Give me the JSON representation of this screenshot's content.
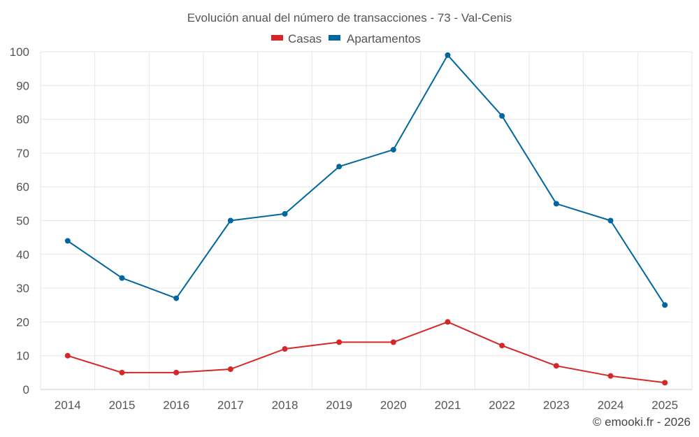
{
  "chart_data": {
    "type": "line",
    "title": "Evolución anual del número de transacciones - 73 - Val-Cenis",
    "categories": [
      "2014",
      "2015",
      "2016",
      "2017",
      "2018",
      "2019",
      "2020",
      "2021",
      "2022",
      "2023",
      "2024",
      "2025"
    ],
    "series": [
      {
        "name": "Casas",
        "color": "#d62728",
        "values": [
          10,
          5,
          5,
          6,
          12,
          14,
          14,
          20,
          13,
          7,
          4,
          2
        ]
      },
      {
        "name": "Apartamentos",
        "color": "#00679e",
        "values": [
          44,
          33,
          27,
          50,
          52,
          66,
          71,
          99,
          81,
          55,
          50,
          25
        ]
      }
    ],
    "ylim": [
      0,
      100
    ],
    "yticks": [
      0,
      10,
      20,
      30,
      40,
      50,
      60,
      70,
      80,
      90,
      100
    ],
    "xlabel": "",
    "ylabel": "",
    "grid": true,
    "legend_position": "top-center"
  },
  "credit": "© emooki.fr - 2026"
}
